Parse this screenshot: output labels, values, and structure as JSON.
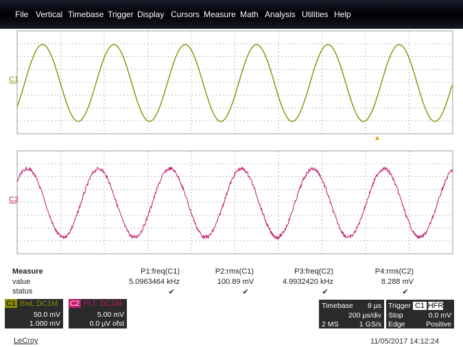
{
  "menu": [
    "File",
    "Vertical",
    "Timebase",
    "Trigger",
    "Display",
    "Cursors",
    "Measure",
    "Math",
    "Analysis",
    "Utilities",
    "Help"
  ],
  "traces": [
    {
      "label": "C1",
      "color": "#8a8c00"
    },
    {
      "label": "C2",
      "color": "#c0186a"
    }
  ],
  "measure": {
    "title": "Measure",
    "row_labels": [
      "value",
      "status"
    ],
    "columns": [
      {
        "name": "P1:freq(C1)",
        "value": "5.0963464 kHz",
        "status": "✔"
      },
      {
        "name": "P2:rms(C1)",
        "value": "100.89 mV",
        "status": "✔"
      },
      {
        "name": "P3:freq(C2)",
        "value": "4.9932420 kHz",
        "status": "✔"
      },
      {
        "name": "P4:rms(C2)",
        "value": "8.288 mV",
        "status": "✔"
      }
    ]
  },
  "channels": [
    {
      "name": "C1",
      "tags": [
        "BwL",
        "DC1M"
      ],
      "scale": "50.0 mV",
      "offset": "1.000 mV"
    },
    {
      "name": "C2",
      "tags": [
        "FLT",
        "DC1M"
      ],
      "scale": "5.00 mV",
      "offset": "0.0 µV ofst"
    }
  ],
  "timebase": {
    "title": "Timebase",
    "delay": "8 µs",
    "per_div": "200 µs/div",
    "samples": "2 MS",
    "rate": "1 GS/s"
  },
  "trigger": {
    "title": "Trigger",
    "tags": [
      "C1",
      "HFR"
    ],
    "mode": "Stop",
    "level": "0.0 mV",
    "type": "Edge",
    "slope": "Positive"
  },
  "brand": "LeCroy",
  "timestamp": "11/05/2017 14:12:24"
}
